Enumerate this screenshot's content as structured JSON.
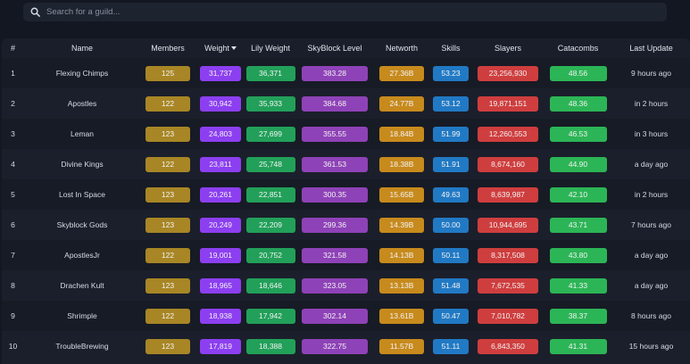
{
  "search": {
    "placeholder": "Search for a guild..."
  },
  "table": {
    "headers": {
      "rank": "#",
      "name": "Name",
      "members": "Members",
      "weight": "Weight",
      "lily": "Lily Weight",
      "skyblock": "SkyBlock Level",
      "networth": "Networth",
      "skills": "Skills",
      "slayers": "Slayers",
      "catacombs": "Catacombs",
      "updated": "Last Update"
    },
    "sort": {
      "column": "weight",
      "direction": "descending",
      "icon": "sort-down-icon"
    },
    "colors": {
      "members": "#a88625",
      "weight": "#8c3ff0",
      "lily": "#22a059",
      "skyblock": "#8e42b7",
      "networth": "#c78a1d",
      "skills": "#2179c4",
      "slayers": "#cf3e3e",
      "catacombs": "#2cb556"
    },
    "rows": [
      {
        "rank": "1",
        "name": "Flexing Chimps",
        "members": "125",
        "weight": "31,737",
        "lily": "36,371",
        "skyblock": "383.28",
        "networth": "27.36B",
        "skills": "53.23",
        "slayers": "23,256,930",
        "catacombs": "48.56",
        "updated": "9 hours ago"
      },
      {
        "rank": "2",
        "name": "Apostles",
        "members": "122",
        "weight": "30,942",
        "lily": "35,933",
        "skyblock": "384.68",
        "networth": "24.77B",
        "skills": "53.12",
        "slayers": "19,871,151",
        "catacombs": "48.36",
        "updated": "in 2 hours"
      },
      {
        "rank": "3",
        "name": "Leman",
        "members": "123",
        "weight": "24,803",
        "lily": "27,699",
        "skyblock": "355.55",
        "networth": "18.84B",
        "skills": "51.99",
        "slayers": "12,260,553",
        "catacombs": "46.53",
        "updated": "in 3 hours"
      },
      {
        "rank": "4",
        "name": "Divine Kings",
        "members": "122",
        "weight": "23,811",
        "lily": "25,748",
        "skyblock": "361.53",
        "networth": "18.38B",
        "skills": "51.91",
        "slayers": "8,674,160",
        "catacombs": "44.90",
        "updated": "a day ago"
      },
      {
        "rank": "5",
        "name": "Lost In Space",
        "members": "123",
        "weight": "20,261",
        "lily": "22,851",
        "skyblock": "300.35",
        "networth": "15.65B",
        "skills": "49.63",
        "slayers": "8,639,987",
        "catacombs": "42.10",
        "updated": "in 2 hours"
      },
      {
        "rank": "6",
        "name": "Skyblock Gods",
        "members": "123",
        "weight": "20,249",
        "lily": "22,209",
        "skyblock": "299.36",
        "networth": "14.39B",
        "skills": "50.00",
        "slayers": "10,944,695",
        "catacombs": "43.71",
        "updated": "7 hours ago"
      },
      {
        "rank": "7",
        "name": "ApostlesJr",
        "members": "122",
        "weight": "19,001",
        "lily": "20,752",
        "skyblock": "321.58",
        "networth": "14.13B",
        "skills": "50.11",
        "slayers": "8,317,508",
        "catacombs": "43.80",
        "updated": "a day ago"
      },
      {
        "rank": "8",
        "name": "Drachen Kult",
        "members": "123",
        "weight": "18,965",
        "lily": "18,646",
        "skyblock": "323.05",
        "networth": "13.13B",
        "skills": "51.48",
        "slayers": "7,672,535",
        "catacombs": "41.33",
        "updated": "a day ago"
      },
      {
        "rank": "9",
        "name": "Shrimple",
        "members": "122",
        "weight": "18,938",
        "lily": "17,942",
        "skyblock": "302.14",
        "networth": "13.61B",
        "skills": "50.47",
        "slayers": "7,010,782",
        "catacombs": "38.37",
        "updated": "8 hours ago"
      },
      {
        "rank": "10",
        "name": "TroubleBrewing",
        "members": "123",
        "weight": "17,819",
        "lily": "18,388",
        "skyblock": "322.75",
        "networth": "11.57B",
        "skills": "51.11",
        "slayers": "6,843,350",
        "catacombs": "41.31",
        "updated": "15 hours ago"
      }
    ]
  }
}
